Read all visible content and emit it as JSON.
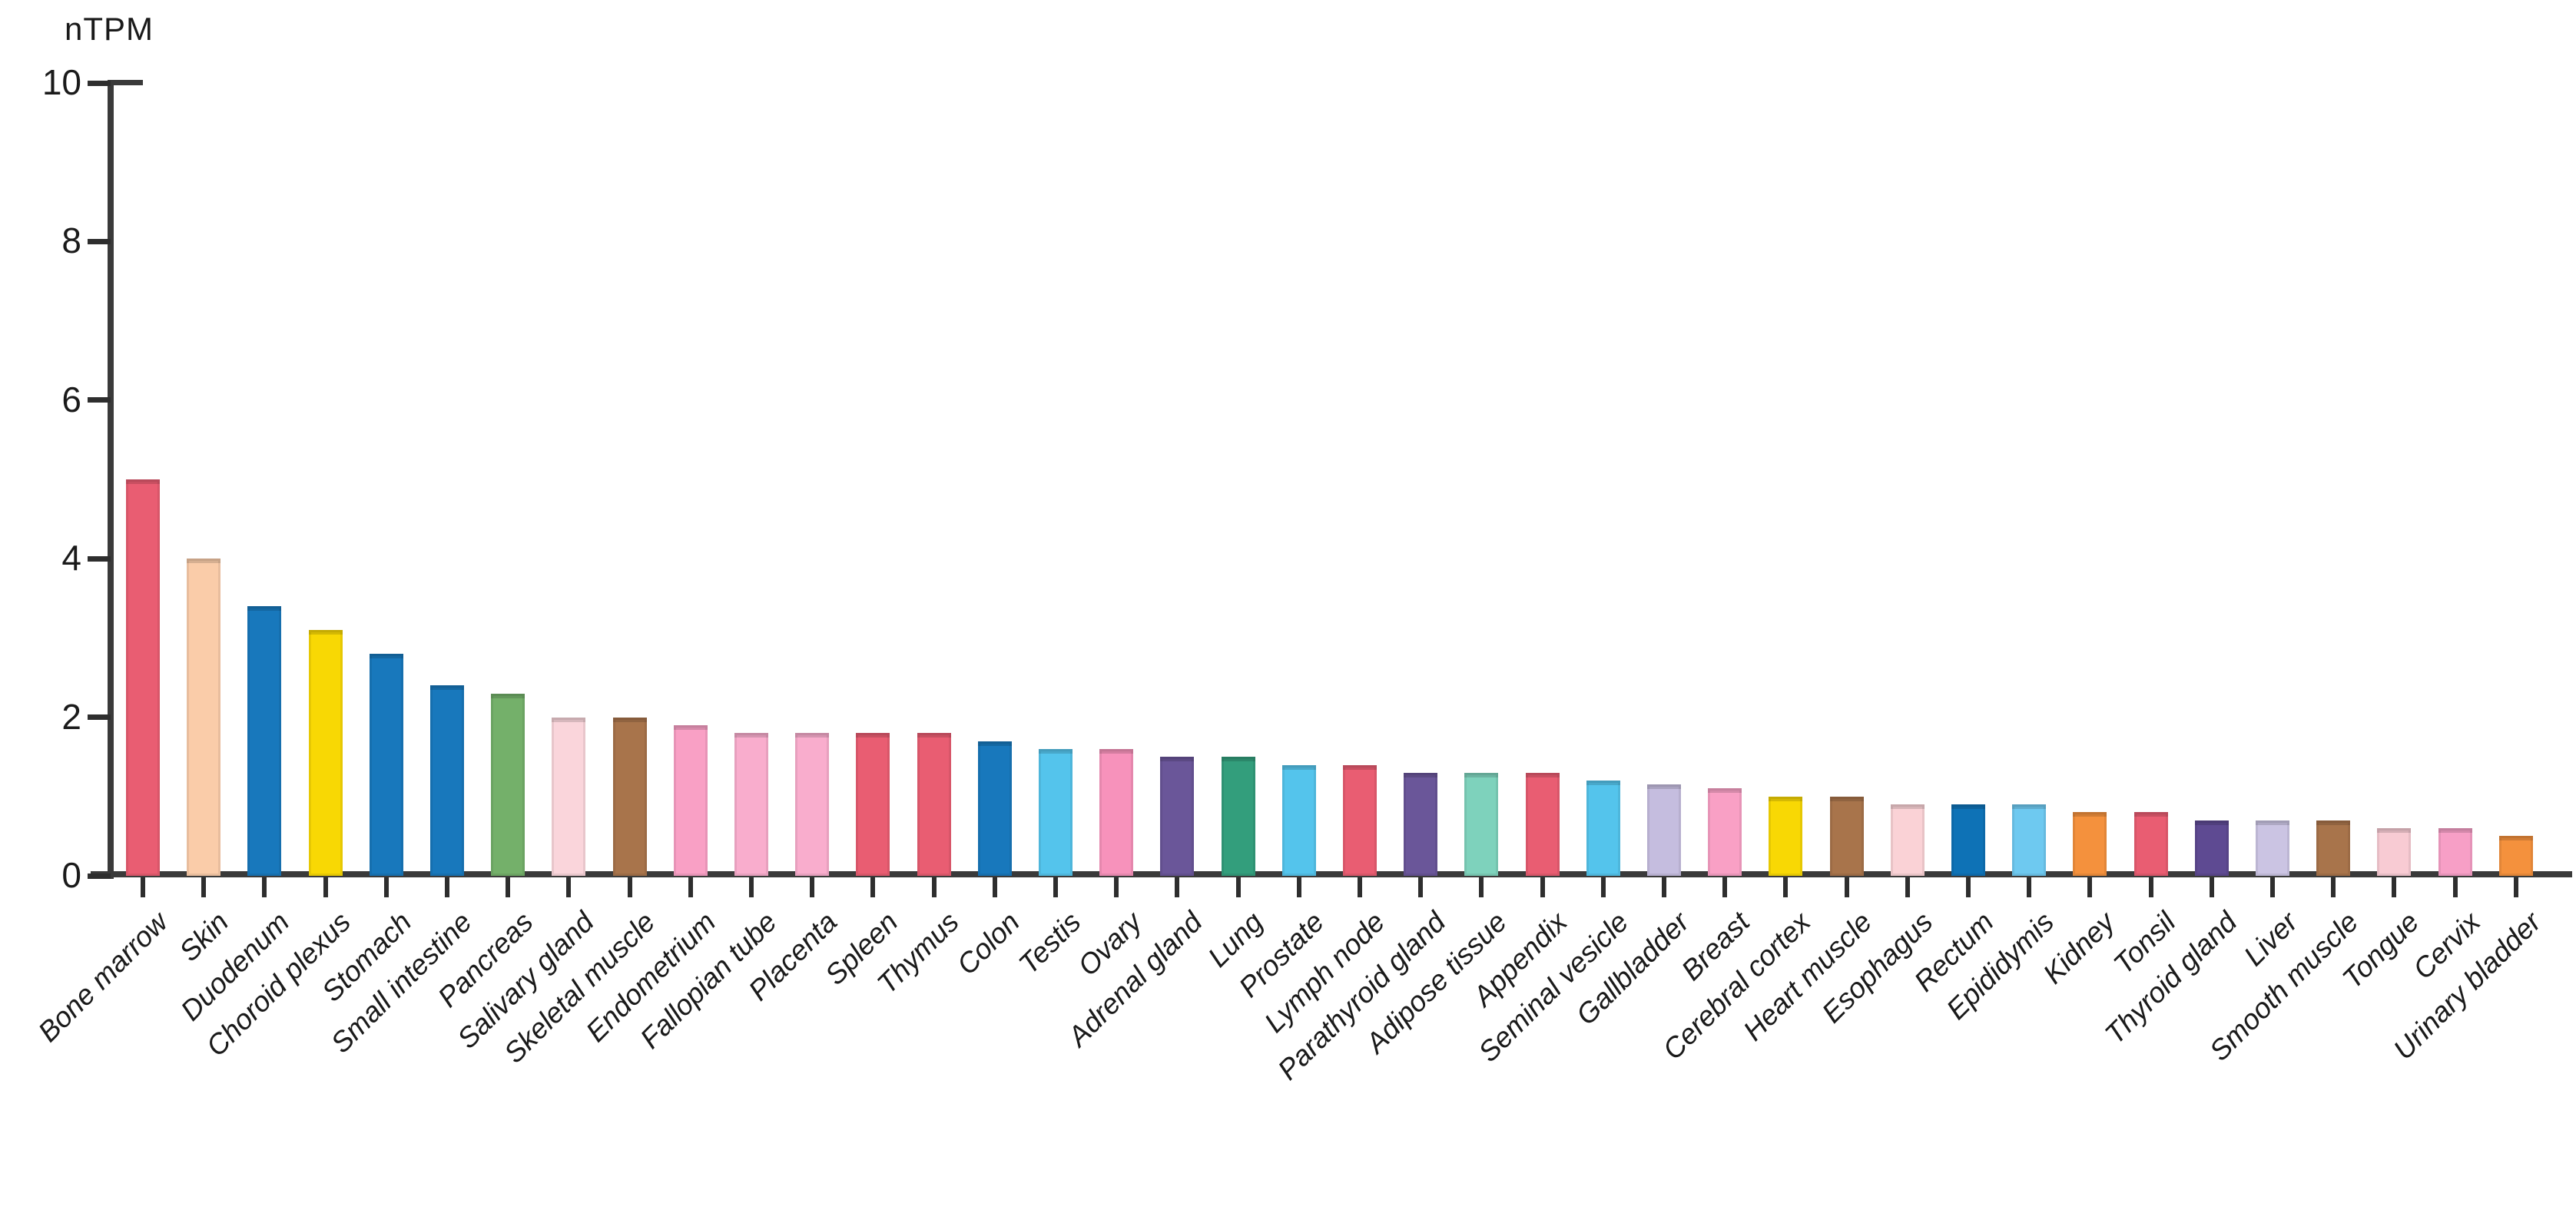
{
  "chart_data": {
    "type": "bar",
    "title": "",
    "ylabel": "nTPM",
    "xlabel": "",
    "ylim": [
      0,
      10
    ],
    "yticks": [
      0,
      2,
      4,
      6,
      8,
      10
    ],
    "grid": false,
    "legend_position": "none",
    "categories": [
      "Bone marrow",
      "Skin",
      "Duodenum",
      "Choroid plexus",
      "Stomach",
      "Small intestine",
      "Pancreas",
      "Salivary gland",
      "Skeletal muscle",
      "Endometrium",
      "Fallopian tube",
      "Placenta",
      "Spleen",
      "Thymus",
      "Colon",
      "Testis",
      "Ovary",
      "Adrenal gland",
      "Lung",
      "Prostate",
      "Lymph node",
      "Parathyroid gland",
      "Adipose tissue",
      "Appendix",
      "Seminal vesicle",
      "Gallbladder",
      "Breast",
      "Cerebral cortex",
      "Heart muscle",
      "Esophagus",
      "Rectum",
      "Epididymis",
      "Kidney",
      "Tonsil",
      "Thyroid gland",
      "Liver",
      "Smooth muscle",
      "Tongue",
      "Cervix",
      "Urinary bladder"
    ],
    "values": [
      5.0,
      4.0,
      3.4,
      3.1,
      2.8,
      2.4,
      2.3,
      2.0,
      2.0,
      1.9,
      1.8,
      1.8,
      1.8,
      1.8,
      1.7,
      1.6,
      1.6,
      1.5,
      1.5,
      1.4,
      1.4,
      1.3,
      1.3,
      1.3,
      1.2,
      1.15,
      1.1,
      1.0,
      1.0,
      0.9,
      0.9,
      0.9,
      0.8,
      0.8,
      0.7,
      0.7,
      0.7,
      0.6,
      0.6,
      0.5
    ],
    "bar_colors": [
      "#E95D72",
      "#FACCA9",
      "#1878BC",
      "#F8D804",
      "#1878BC",
      "#1878BC",
      "#74B06A",
      "#FAD5DB",
      "#A8744B",
      "#F9A0C5",
      "#F9ADCD",
      "#F9ADCD",
      "#E95D72",
      "#E95D72",
      "#1878BC",
      "#54C4EC",
      "#F792BB",
      "#6A5699",
      "#339E7C",
      "#54C4EC",
      "#E95D72",
      "#6A5699",
      "#7ED2BC",
      "#E95D72",
      "#54C4EC",
      "#C5BDDF",
      "#F9A0C5",
      "#F8D804",
      "#A8744B",
      "#FAD2D6",
      "#0E72B6",
      "#6EC9F0",
      "#F4913D",
      "#E95D72",
      "#5E4A92",
      "#CBC4E3",
      "#A8744B",
      "#F8CBD3",
      "#F79FC6",
      "#F4913D"
    ],
    "axis_color": "#3a3a3a",
    "tick_label_color": "#1a1a1a"
  }
}
